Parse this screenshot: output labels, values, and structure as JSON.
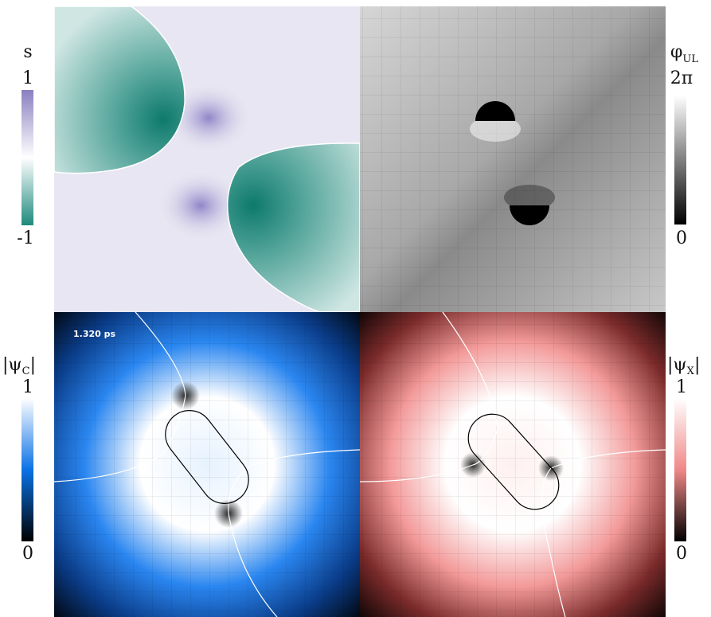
{
  "timestamp": "1.320 ps",
  "colorbars": [
    {
      "symbol": "s",
      "subscript": "",
      "suffix": "",
      "max_label": "1",
      "min_label": "-1"
    },
    {
      "symbol": "φ",
      "subscript": "UL",
      "suffix": "",
      "max_label": "2π",
      "min_label": "0"
    },
    {
      "symbol": "|ψ",
      "subscript": "C",
      "suffix": "|",
      "max_label": "1",
      "min_label": "0"
    },
    {
      "symbol": "|ψ",
      "subscript": "X",
      "suffix": "|",
      "max_label": "1",
      "min_label": "0"
    }
  ]
}
